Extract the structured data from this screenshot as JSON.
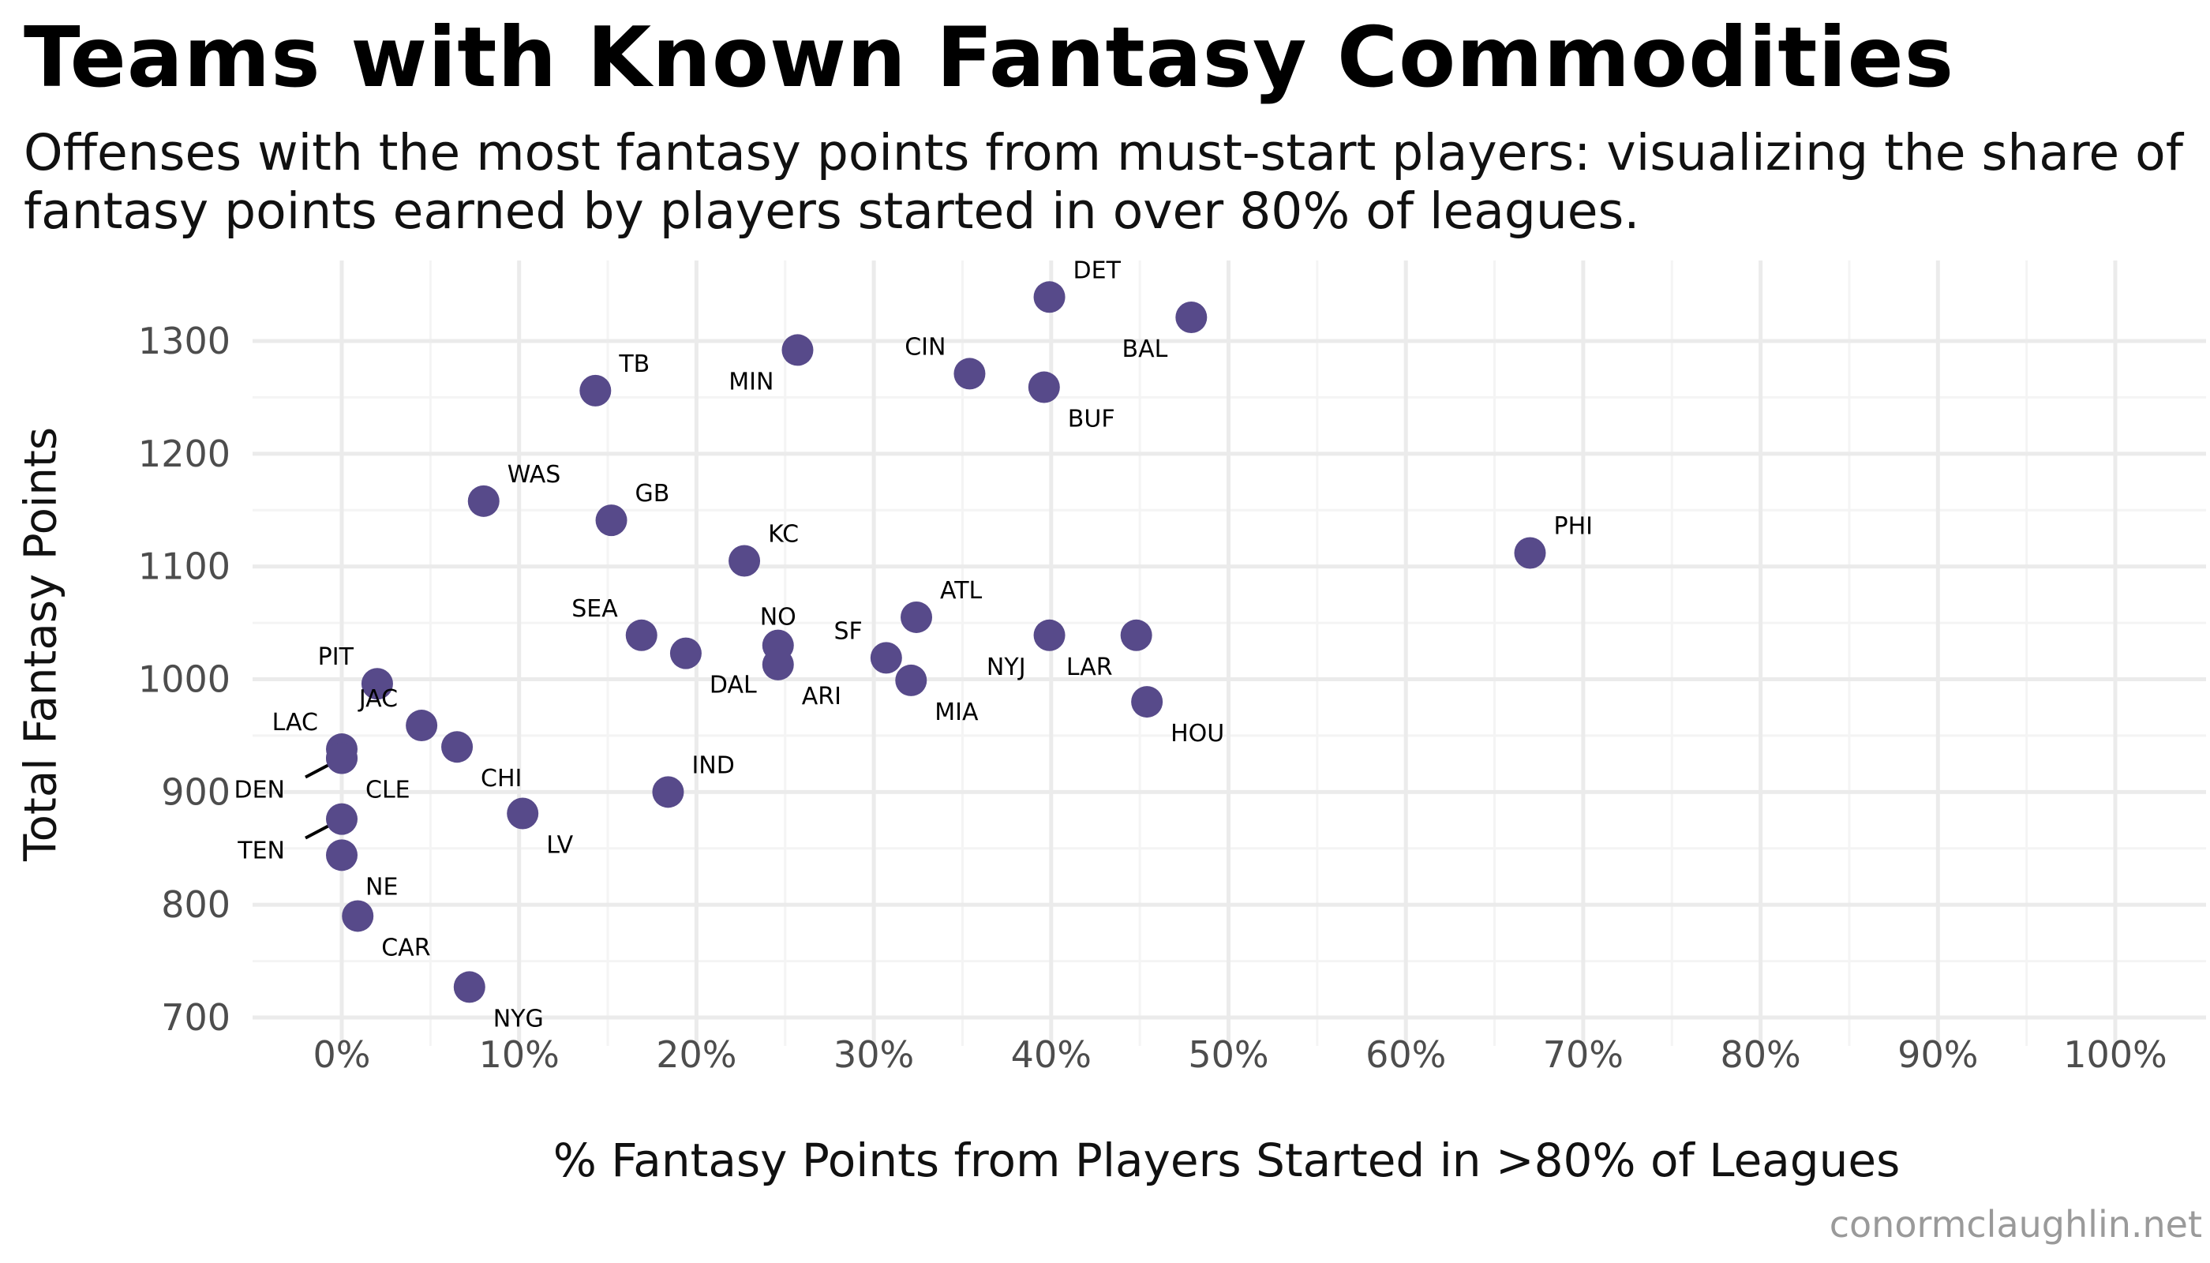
{
  "title": "Teams with Known Fantasy Commodities",
  "subtitle": "Offenses with the most fantasy points from must-start players: visualizing the share of fantasy points earned by players started in over 80% of leagues.",
  "credit": "conormclaughlin.net",
  "colors": {
    "point": "#574a8a",
    "grid_major": "#ebebeb",
    "grid_minor": "#f4f4f4",
    "tick_text": "#4d4d4d",
    "label_text": "#000000"
  },
  "chart_data": {
    "type": "scatter",
    "title": "Teams with Known Fantasy Commodities",
    "subtitle": "Offenses with the most fantasy points from must-start players: visualizing the share of fantasy points earned by players started in over 80% of leagues.",
    "xlabel": "% Fantasy Points from Players Started in >80% of Leagues",
    "ylabel": "Total Fantasy Points",
    "xlim": [
      -0.05,
      1.05
    ],
    "ylim": [
      690,
      1360
    ],
    "xticks": [
      0,
      0.1,
      0.2,
      0.3,
      0.4,
      0.5,
      0.6,
      0.7,
      0.8,
      0.9,
      1.0
    ],
    "xtick_labels": [
      "0%",
      "10%",
      "20%",
      "30%",
      "40%",
      "50%",
      "60%",
      "70%",
      "80%",
      "90%",
      "100%"
    ],
    "yticks": [
      700,
      800,
      900,
      1000,
      1100,
      1200,
      1300
    ],
    "ytick_labels": [
      "700",
      "800",
      "900",
      "1000",
      "1100",
      "1200",
      "1300"
    ],
    "grid": true,
    "legend": "none",
    "points": [
      {
        "team": "DET",
        "x": 0.399,
        "y": 1339,
        "label_pos": "right-up"
      },
      {
        "team": "BAL",
        "x": 0.479,
        "y": 1321,
        "label_pos": "left-down"
      },
      {
        "team": "MIN",
        "x": 0.257,
        "y": 1292,
        "label_pos": "left-down"
      },
      {
        "team": "CIN",
        "x": 0.354,
        "y": 1271,
        "label_pos": "left-up"
      },
      {
        "team": "BUF",
        "x": 0.396,
        "y": 1259,
        "label_pos": "right-down"
      },
      {
        "team": "TB",
        "x": 0.143,
        "y": 1256,
        "label_pos": "right-up"
      },
      {
        "team": "WAS",
        "x": 0.08,
        "y": 1158,
        "label_pos": "right-up"
      },
      {
        "team": "GB",
        "x": 0.152,
        "y": 1141,
        "label_pos": "right-up"
      },
      {
        "team": "PHI",
        "x": 0.67,
        "y": 1112,
        "label_pos": "right-up"
      },
      {
        "team": "KC",
        "x": 0.227,
        "y": 1105,
        "label_pos": "right-up"
      },
      {
        "team": "ATL",
        "x": 0.324,
        "y": 1055,
        "label_pos": "right-up"
      },
      {
        "team": "SEA",
        "x": 0.169,
        "y": 1039,
        "label_pos": "left-up"
      },
      {
        "team": "NYJ",
        "x": 0.399,
        "y": 1039,
        "label_pos": "left-down"
      },
      {
        "team": "LAR",
        "x": 0.448,
        "y": 1039,
        "label_pos": "left-down"
      },
      {
        "team": "NO",
        "x": 0.246,
        "y": 1030,
        "label_pos": "up"
      },
      {
        "team": "DAL",
        "x": 0.194,
        "y": 1023,
        "label_pos": "right-down"
      },
      {
        "team": "SF",
        "x": 0.307,
        "y": 1019,
        "label_pos": "left-up"
      },
      {
        "team": "ARI",
        "x": 0.246,
        "y": 1013,
        "label_pos": "right-down"
      },
      {
        "team": "MIA",
        "x": 0.321,
        "y": 999,
        "label_pos": "right-down"
      },
      {
        "team": "PIT",
        "x": 0.02,
        "y": 996,
        "label_pos": "left-up"
      },
      {
        "team": "HOU",
        "x": 0.454,
        "y": 980,
        "label_pos": "right-down"
      },
      {
        "team": "JAC",
        "x": 0.045,
        "y": 959,
        "label_pos": "left-up"
      },
      {
        "team": "CHI",
        "x": 0.065,
        "y": 940,
        "label_pos": "right-down"
      },
      {
        "team": "LAC",
        "x": 0.0,
        "y": 938,
        "label_pos": "left-up"
      },
      {
        "team": "DEN",
        "x": 0.0,
        "y": 930,
        "label_pos": "leader-left-down"
      },
      {
        "team": "CLE",
        "x": 0.0,
        "y": 930,
        "label_pos": "right-down"
      },
      {
        "team": "IND",
        "x": 0.184,
        "y": 900,
        "label_pos": "right-up"
      },
      {
        "team": "LV",
        "x": 0.102,
        "y": 881,
        "label_pos": "right-down"
      },
      {
        "team": "TEN",
        "x": 0.0,
        "y": 876,
        "label_pos": "leader-left-down"
      },
      {
        "team": "NE",
        "x": 0.0,
        "y": 844,
        "label_pos": "right-down"
      },
      {
        "team": "CAR",
        "x": 0.009,
        "y": 790,
        "label_pos": "right-down"
      },
      {
        "team": "NYG",
        "x": 0.072,
        "y": 727,
        "label_pos": "right-down"
      }
    ]
  }
}
